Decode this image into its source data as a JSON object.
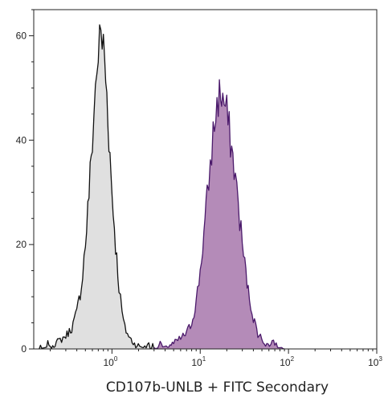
{
  "chart_data": {
    "type": "area",
    "title": "",
    "xlabel": "CD107b-UNLB + FITC Secondary",
    "ylabel": "",
    "x_scale": "log",
    "xlim": [
      0.13,
      1000
    ],
    "ylim": [
      0,
      65
    ],
    "x_ticks": [
      {
        "value": 1,
        "base": "10",
        "exp": "0"
      },
      {
        "value": 10,
        "base": "10",
        "exp": "1"
      },
      {
        "value": 100,
        "base": "10",
        "exp": "2"
      },
      {
        "value": 1000,
        "base": "10",
        "exp": "3"
      }
    ],
    "y_ticks": [
      0,
      20,
      40,
      60
    ],
    "grid": false,
    "legend": "none",
    "series": [
      {
        "fill": "#e0e0e0",
        "stroke": "#111111",
        "points": [
          [
            0.15,
            0
          ],
          [
            0.2,
            0.5
          ],
          [
            0.25,
            1.5
          ],
          [
            0.3,
            2.5
          ],
          [
            0.35,
            4
          ],
          [
            0.4,
            7
          ],
          [
            0.45,
            12
          ],
          [
            0.5,
            20
          ],
          [
            0.55,
            30
          ],
          [
            0.6,
            40
          ],
          [
            0.65,
            50
          ],
          [
            0.7,
            57
          ],
          [
            0.75,
            60
          ],
          [
            0.8,
            58
          ],
          [
            0.85,
            52
          ],
          [
            0.9,
            45
          ],
          [
            0.95,
            37
          ],
          [
            1.0,
            30
          ],
          [
            1.1,
            20
          ],
          [
            1.2,
            12
          ],
          [
            1.3,
            7
          ],
          [
            1.4,
            4
          ],
          [
            1.6,
            2
          ],
          [
            1.8,
            1
          ],
          [
            2.2,
            0.3
          ],
          [
            3.0,
            0
          ]
        ]
      },
      {
        "fill": "#b48bb8",
        "stroke": "#4b1a6b",
        "points": [
          [
            3,
            0
          ],
          [
            4,
            0.5
          ],
          [
            5,
            1
          ],
          [
            6,
            2
          ],
          [
            7,
            3
          ],
          [
            8,
            5
          ],
          [
            9,
            9
          ],
          [
            10,
            15
          ],
          [
            11,
            22
          ],
          [
            12,
            29
          ],
          [
            13,
            35
          ],
          [
            14,
            41
          ],
          [
            15,
            45
          ],
          [
            16,
            48
          ],
          [
            17,
            49
          ],
          [
            18,
            48
          ],
          [
            20,
            45
          ],
          [
            22,
            40
          ],
          [
            25,
            33
          ],
          [
            28,
            25
          ],
          [
            31,
            18
          ],
          [
            35,
            11
          ],
          [
            40,
            6
          ],
          [
            45,
            3
          ],
          [
            55,
            1
          ],
          [
            70,
            0.4
          ],
          [
            90,
            0
          ]
        ]
      }
    ]
  }
}
